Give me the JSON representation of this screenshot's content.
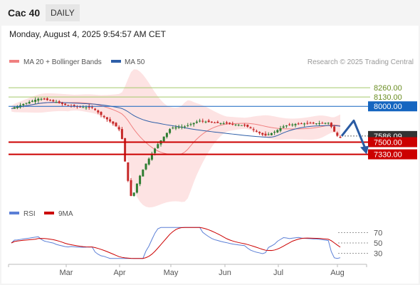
{
  "header": {
    "title": "Cac 40",
    "period_button": "DAILY",
    "datetime": "Monday, August 4, 2025 9:54:57 AM CET"
  },
  "colors": {
    "bollinger": "#f08080",
    "bollinger_fill": "#fde3e3",
    "ma50": "#2e5fa8",
    "up_candle": "#2e7d32",
    "down_candle": "#c62828",
    "support": "#cc0000",
    "resistance": "#1565c0",
    "target_line": "#a5c96a",
    "rsi": "#5b7fd6",
    "rsi_ma": "#cc0000",
    "forecast_arrow": "#2a5ba3"
  },
  "chart_data": [
    {
      "type": "candlestick",
      "legend": [
        {
          "label": "MA 20 + Bollinger Bands",
          "color": "#f08080"
        },
        {
          "label": "MA 50",
          "color": "#2e5fa8"
        }
      ],
      "legend_placement": "top-left",
      "credit": "Research © 2025 Trading Central",
      "x_ticks": [
        "Mar",
        "Apr",
        "May",
        "Jun",
        "Jul",
        "Aug"
      ],
      "ylim": [
        6600,
        8450
      ],
      "levels": [
        {
          "label": "8260.00",
          "value": 8260,
          "style": "target"
        },
        {
          "label": "8130.00",
          "value": 8130,
          "style": "target"
        },
        {
          "label": "8000.00",
          "value": 8000,
          "style": "resistance"
        },
        {
          "label": "7586.09",
          "value": 7586.09,
          "style": "last"
        },
        {
          "label": "7500.00",
          "value": 7500,
          "style": "support"
        },
        {
          "label": "7330.00",
          "value": 7330,
          "style": "support"
        }
      ],
      "forecast": {
        "from": 7586,
        "pullback_to": 7800,
        "target": 7330
      }
    },
    {
      "type": "line",
      "name": "RSI",
      "legend": [
        {
          "label": "RSI",
          "color": "#5b7fd6"
        },
        {
          "label": "9MA",
          "color": "#cc0000"
        }
      ],
      "y_ticks": [
        70,
        50,
        30
      ],
      "ylim": [
        10,
        90
      ]
    }
  ]
}
